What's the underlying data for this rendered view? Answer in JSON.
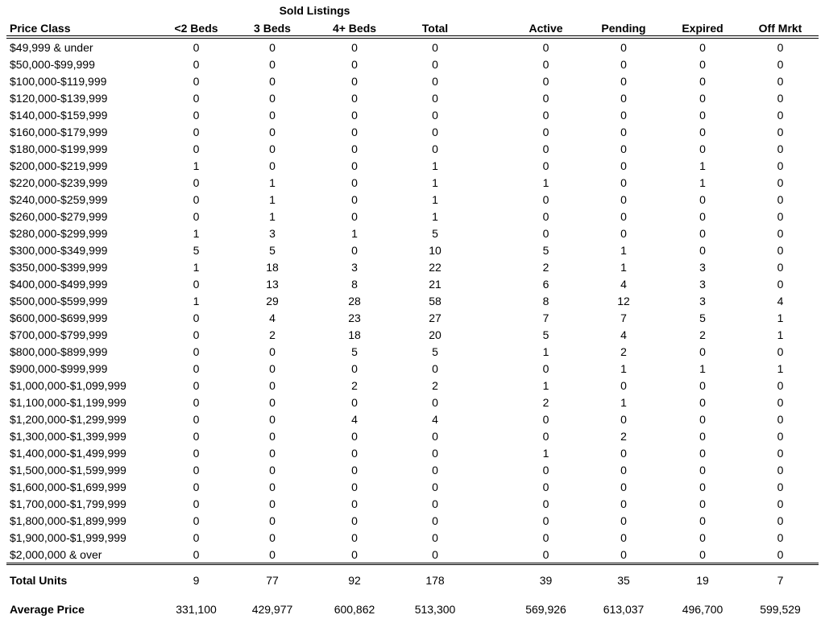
{
  "title": "Sold Listings",
  "columns": [
    "Price Class",
    "<2 Beds",
    "3 Beds",
    "4+ Beds",
    "Total",
    "Active",
    "Pending",
    "Expired",
    "Off Mrkt"
  ],
  "chart_data": {
    "type": "table",
    "title": "Sold Listings",
    "group_header": "Sold Listings",
    "group_header_spans": [
      "<2 Beds",
      "3 Beds",
      "4+ Beds",
      "Total"
    ],
    "columns": [
      "Price Class",
      "<2 Beds",
      "3 Beds",
      "4+ Beds",
      "Total",
      "Active",
      "Pending",
      "Expired",
      "Off Mrkt"
    ]
  },
  "rows": [
    {
      "price_class": "$49,999 & under",
      "values": [
        "0",
        "0",
        "0",
        "0",
        "0",
        "0",
        "0",
        "0"
      ]
    },
    {
      "price_class": "$50,000-$99,999",
      "values": [
        "0",
        "0",
        "0",
        "0",
        "0",
        "0",
        "0",
        "0"
      ]
    },
    {
      "price_class": "$100,000-$119,999",
      "values": [
        "0",
        "0",
        "0",
        "0",
        "0",
        "0",
        "0",
        "0"
      ]
    },
    {
      "price_class": "$120,000-$139,999",
      "values": [
        "0",
        "0",
        "0",
        "0",
        "0",
        "0",
        "0",
        "0"
      ]
    },
    {
      "price_class": "$140,000-$159,999",
      "values": [
        "0",
        "0",
        "0",
        "0",
        "0",
        "0",
        "0",
        "0"
      ]
    },
    {
      "price_class": "$160,000-$179,999",
      "values": [
        "0",
        "0",
        "0",
        "0",
        "0",
        "0",
        "0",
        "0"
      ]
    },
    {
      "price_class": "$180,000-$199,999",
      "values": [
        "0",
        "0",
        "0",
        "0",
        "0",
        "0",
        "0",
        "0"
      ]
    },
    {
      "price_class": "$200,000-$219,999",
      "values": [
        "1",
        "0",
        "0",
        "1",
        "0",
        "0",
        "1",
        "0"
      ]
    },
    {
      "price_class": "$220,000-$239,999",
      "values": [
        "0",
        "1",
        "0",
        "1",
        "1",
        "0",
        "1",
        "0"
      ]
    },
    {
      "price_class": "$240,000-$259,999",
      "values": [
        "0",
        "1",
        "0",
        "1",
        "0",
        "0",
        "0",
        "0"
      ]
    },
    {
      "price_class": "$260,000-$279,999",
      "values": [
        "0",
        "1",
        "0",
        "1",
        "0",
        "0",
        "0",
        "0"
      ]
    },
    {
      "price_class": "$280,000-$299,999",
      "values": [
        "1",
        "3",
        "1",
        "5",
        "0",
        "0",
        "0",
        "0"
      ]
    },
    {
      "price_class": "$300,000-$349,999",
      "values": [
        "5",
        "5",
        "0",
        "10",
        "5",
        "1",
        "0",
        "0"
      ]
    },
    {
      "price_class": "$350,000-$399,999",
      "values": [
        "1",
        "18",
        "3",
        "22",
        "2",
        "1",
        "3",
        "0"
      ]
    },
    {
      "price_class": "$400,000-$499,999",
      "values": [
        "0",
        "13",
        "8",
        "21",
        "6",
        "4",
        "3",
        "0"
      ]
    },
    {
      "price_class": "$500,000-$599,999",
      "values": [
        "1",
        "29",
        "28",
        "58",
        "8",
        "12",
        "3",
        "4"
      ]
    },
    {
      "price_class": "$600,000-$699,999",
      "values": [
        "0",
        "4",
        "23",
        "27",
        "7",
        "7",
        "5",
        "1"
      ]
    },
    {
      "price_class": "$700,000-$799,999",
      "values": [
        "0",
        "2",
        "18",
        "20",
        "5",
        "4",
        "2",
        "1"
      ]
    },
    {
      "price_class": "$800,000-$899,999",
      "values": [
        "0",
        "0",
        "5",
        "5",
        "1",
        "2",
        "0",
        "0"
      ]
    },
    {
      "price_class": "$900,000-$999,999",
      "values": [
        "0",
        "0",
        "0",
        "0",
        "0",
        "1",
        "1",
        "1"
      ]
    },
    {
      "price_class": "$1,000,000-$1,099,999",
      "values": [
        "0",
        "0",
        "2",
        "2",
        "1",
        "0",
        "0",
        "0"
      ]
    },
    {
      "price_class": "$1,100,000-$1,199,999",
      "values": [
        "0",
        "0",
        "0",
        "0",
        "2",
        "1",
        "0",
        "0"
      ]
    },
    {
      "price_class": "$1,200,000-$1,299,999",
      "values": [
        "0",
        "0",
        "4",
        "4",
        "0",
        "0",
        "0",
        "0"
      ]
    },
    {
      "price_class": "$1,300,000-$1,399,999",
      "values": [
        "0",
        "0",
        "0",
        "0",
        "0",
        "2",
        "0",
        "0"
      ]
    },
    {
      "price_class": "$1,400,000-$1,499,999",
      "values": [
        "0",
        "0",
        "0",
        "0",
        "1",
        "0",
        "0",
        "0"
      ]
    },
    {
      "price_class": "$1,500,000-$1,599,999",
      "values": [
        "0",
        "0",
        "0",
        "0",
        "0",
        "0",
        "0",
        "0"
      ]
    },
    {
      "price_class": "$1,600,000-$1,699,999",
      "values": [
        "0",
        "0",
        "0",
        "0",
        "0",
        "0",
        "0",
        "0"
      ]
    },
    {
      "price_class": "$1,700,000-$1,799,999",
      "values": [
        "0",
        "0",
        "0",
        "0",
        "0",
        "0",
        "0",
        "0"
      ]
    },
    {
      "price_class": "$1,800,000-$1,899,999",
      "values": [
        "0",
        "0",
        "0",
        "0",
        "0",
        "0",
        "0",
        "0"
      ]
    },
    {
      "price_class": "$1,900,000-$1,999,999",
      "values": [
        "0",
        "0",
        "0",
        "0",
        "0",
        "0",
        "0",
        "0"
      ]
    },
    {
      "price_class": "$2,000,000 & over",
      "values": [
        "0",
        "0",
        "0",
        "0",
        "0",
        "0",
        "0",
        "0"
      ]
    }
  ],
  "totals": {
    "label": "Total Units",
    "values": [
      "9",
      "77",
      "92",
      "178",
      "39",
      "35",
      "19",
      "7"
    ]
  },
  "average": {
    "label": "Average Price",
    "values": [
      "331,100",
      "429,977",
      "600,862",
      "513,300",
      "569,926",
      "613,037",
      "496,700",
      "599,529"
    ]
  },
  "colors": {
    "text": "#000000",
    "background": "#ffffff",
    "rule": "#000000"
  }
}
